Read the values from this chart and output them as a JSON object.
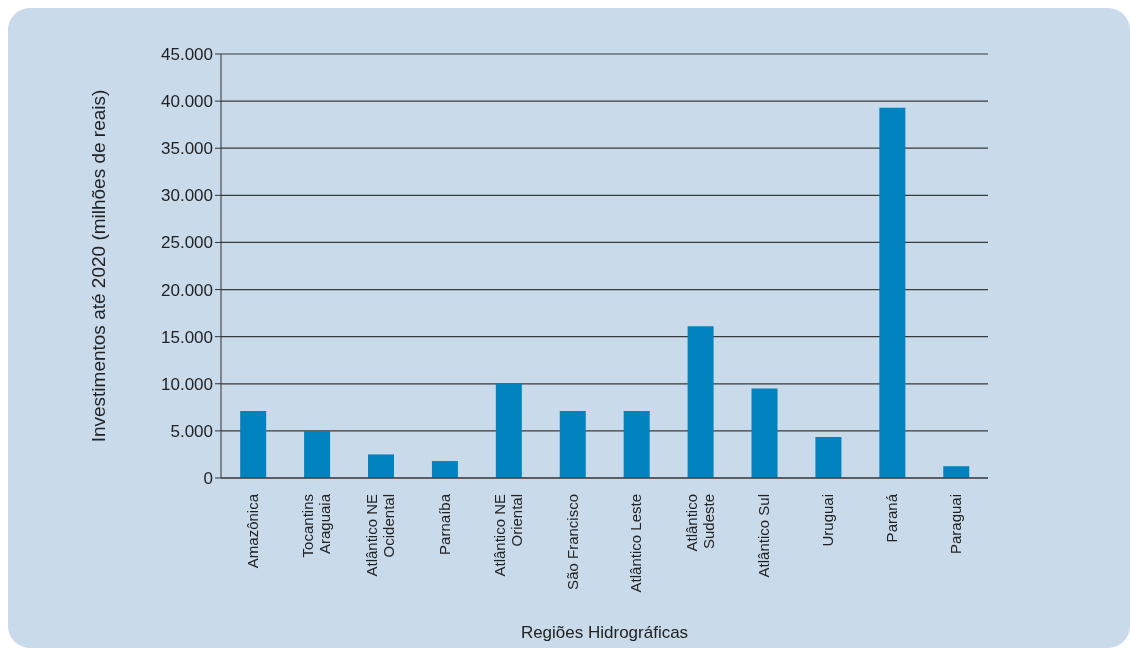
{
  "chart_data": {
    "type": "bar",
    "xlabel": "Regiões Hidrográficas",
    "ylabel": "Investimentos até 2020 (milhões de reais)",
    "categories": [
      "Amazônica",
      "Tocantins\nAraguaia",
      "Atlântico NE\nOcidental",
      "Parnaíba",
      "Atlântico NE\nOriental",
      "São Francisco",
      "Atlântico Leste",
      "Atlântico\nSudeste",
      "Atlântico Sul",
      "Uruguai",
      "Paraná",
      "Paraguai"
    ],
    "values": [
      7100,
      5000,
      2500,
      1800,
      10000,
      7100,
      7100,
      16100,
      9500,
      4350,
      39300,
      1250
    ],
    "color": "#0083be",
    "ylim": [
      0,
      45000
    ],
    "yticks": [
      {
        "value": 0,
        "label": "0"
      },
      {
        "value": 5000,
        "label": "5.000"
      },
      {
        "value": 10000,
        "label": "10.000"
      },
      {
        "value": 15000,
        "label": "15.000"
      },
      {
        "value": 20000,
        "label": "20.000"
      },
      {
        "value": 25000,
        "label": "25.000"
      },
      {
        "value": 30000,
        "label": "30.000"
      },
      {
        "value": 35000,
        "label": "35.000"
      },
      {
        "value": 40000,
        "label": "40.000"
      },
      {
        "value": 45000,
        "label": "45.000"
      }
    ],
    "grid": "y",
    "legend": false
  }
}
